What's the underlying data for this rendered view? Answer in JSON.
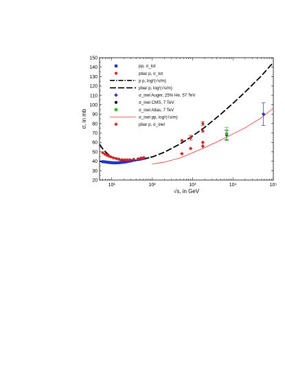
{
  "chart_data": {
    "type": "scatter",
    "xlabel": "√s, in GeV",
    "ylabel": "σ, in mb",
    "xscale": "log",
    "xlim": [
      5,
      100000
    ],
    "ylim": [
      20,
      150
    ],
    "yticks": [
      20,
      30,
      40,
      50,
      60,
      70,
      80,
      90,
      100,
      110,
      120,
      130,
      140,
      150
    ],
    "xticks": [
      {
        "value": 10,
        "label": "10¹"
      },
      {
        "value": 100,
        "label": "10²"
      },
      {
        "value": 1000,
        "label": "10³"
      },
      {
        "value": 10000,
        "label": "10⁴"
      },
      {
        "value": 100000,
        "label": "10⁵"
      }
    ],
    "grid": false,
    "legend_position": "top-left",
    "series": [
      {
        "name": "pp, σ_tot",
        "style": "square",
        "color": "#2233cc",
        "x": [
          6.0,
          6.8,
          7.5,
          8.3,
          9.2,
          10.0,
          11.0,
          12.0,
          13.5,
          15.0,
          16.5,
          18.0,
          20.0,
          22.0,
          24.0,
          27.0,
          30.0,
          35.0,
          45.0,
          53.0,
          62.0
        ],
        "y": [
          39.5,
          39.3,
          39.0,
          38.8,
          38.6,
          38.4,
          38.3,
          38.2,
          38.3,
          38.4,
          38.6,
          38.8,
          39.0,
          39.3,
          39.6,
          40.0,
          40.4,
          41.0,
          41.8,
          42.4,
          43.0
        ]
      },
      {
        "name": "pbar p, σ_tot",
        "style": "circle",
        "color": "#dd2222",
        "x": [
          6.0,
          6.8,
          7.6,
          8.5,
          9.5,
          11.0,
          13.0,
          15.0,
          18.0,
          21.0,
          24.0,
          28.0,
          35.0,
          45.0,
          53.0,
          62.0,
          546,
          900,
          1800,
          1800
        ],
        "y": [
          49.0,
          47.5,
          46.4,
          45.5,
          44.6,
          43.6,
          42.8,
          42.2,
          41.7,
          41.5,
          41.5,
          41.6,
          42.0,
          42.6,
          43.4,
          43.8,
          62.0,
          65.0,
          72.0,
          80.0
        ],
        "yerr": [
          0.6,
          0.6,
          0.5,
          0.5,
          0.5,
          0.5,
          0.5,
          0.5,
          0.5,
          0.5,
          0.5,
          0.5,
          0.5,
          0.5,
          0.5,
          0.5,
          1.5,
          2.5,
          2.0,
          2.2
        ]
      },
      {
        "name": "pbar p, σ_inel",
        "style": "diamond",
        "color": "#dd2222",
        "x": [
          546,
          900,
          1800,
          1800
        ],
        "y": [
          48.0,
          53.5,
          56.0,
          60.0
        ],
        "yerr": [
          1.0,
          1.5,
          2.0,
          2.0
        ]
      },
      {
        "name": "σ_inel Auger, 25% He, 57 TeV",
        "style": "diamond",
        "color": "#2233cc",
        "x": [
          57000
        ],
        "y": [
          90.0
        ],
        "yerr": [
          12.0
        ]
      },
      {
        "name": "σ_inel CMS, 7 TeV",
        "style": "circle",
        "color": "#000000",
        "x": [
          7000
        ],
        "y": [
          68.0
        ],
        "yerr": [
          5.0
        ]
      },
      {
        "name": "σ_inel Atlas, 7 TeV",
        "style": "square",
        "color": "#22bb22",
        "x": [
          7000
        ],
        "y": [
          69.1
        ],
        "yerr": [
          7.0
        ]
      }
    ],
    "curves": [
      {
        "name": "p p, log²(√s/m)",
        "style": "dashdot",
        "color": "#000000",
        "x": [
          5,
          6,
          8,
          10,
          15,
          20,
          30,
          50,
          100
        ],
        "y": [
          40.0,
          39.4,
          38.9,
          38.7,
          38.8,
          39.3,
          40.1,
          41.6,
          44.7
        ]
      },
      {
        "name": "pbar p, log²(√s/m)",
        "style": "longdash",
        "color": "#000000",
        "x": [
          5,
          6,
          8,
          10,
          15,
          20,
          30,
          50,
          100,
          200,
          500,
          1000,
          2000,
          5000,
          10000,
          20000,
          50000,
          100000
        ],
        "y": [
          58.0,
          53.0,
          47.5,
          44.5,
          41.6,
          40.6,
          40.3,
          41.3,
          44.5,
          49.5,
          58.5,
          66.8,
          76.0,
          90.0,
          101.5,
          113.5,
          130.5,
          145.0
        ]
      },
      {
        "name": "σ_inel pp, log²(√s/m)",
        "style": "solid",
        "color": "#ee4444",
        "x": [
          100,
          200,
          500,
          1000,
          2000,
          5000,
          10000,
          20000,
          50000,
          100000
        ],
        "y": [
          37.0,
          39.0,
          43.5,
          49.0,
          54.5,
          62.5,
          69.0,
          75.5,
          86.0,
          96.5
        ]
      }
    ],
    "legend": [
      {
        "label": "pp,      σ_tot",
        "kind": "marker",
        "style": "square",
        "color": "#2233cc"
      },
      {
        "label": "pbar p, σ_tot",
        "kind": "marker",
        "style": "circle",
        "color": "#dd2222"
      },
      {
        "label": "p p,     log²(√s/m)",
        "kind": "line",
        "style": "dashdot",
        "color": "#000000"
      },
      {
        "label": "pbar p, log²(√s/m)",
        "kind": "line",
        "style": "longdash",
        "color": "#000000"
      },
      {
        "label": "σ_inel Auger, 25% He, 57 TeV",
        "kind": "marker",
        "style": "diamond",
        "color": "#2233cc"
      },
      {
        "label": "σ_inel CMS, 7 TeV",
        "kind": "marker",
        "style": "circle",
        "color": "#000000"
      },
      {
        "label": "σ_inel Atlas, 7 TeV",
        "kind": "marker",
        "style": "square",
        "color": "#22bb22"
      },
      {
        "label": "σ_inel pp, log²(√s/m)",
        "kind": "line",
        "style": "solid",
        "color": "#ee4444"
      },
      {
        "label": "pbar p, σ_inel",
        "kind": "marker",
        "style": "diamond",
        "color": "#dd2222"
      }
    ]
  }
}
